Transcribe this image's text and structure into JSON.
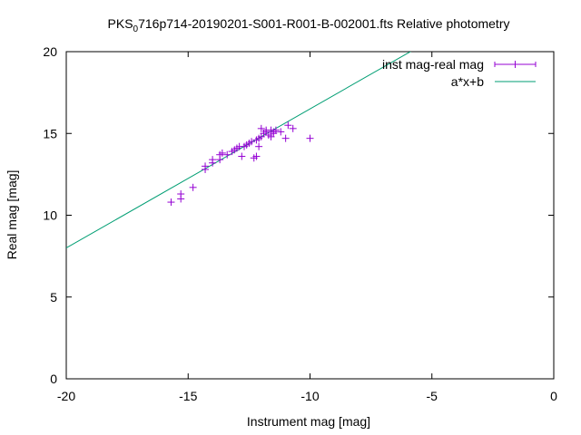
{
  "chart_data": {
    "type": "scatter",
    "title": {
      "prefix": "PKS",
      "subscript": "0",
      "suffix": "716p714-20190201-S001-R001-B-002001.fts Relative photometry"
    },
    "xlabel": "Instrument mag [mag]",
    "ylabel": "Real mag [mag]",
    "xlim": [
      -20,
      0
    ],
    "ylim": [
      0,
      20
    ],
    "xticks": [
      -20,
      -15,
      -10,
      -5,
      0
    ],
    "yticks": [
      0,
      5,
      10,
      15,
      20
    ],
    "grid": false,
    "legend_position": "top-right",
    "colors": {
      "points": "#9400d3",
      "fit": "#009e73"
    },
    "series": [
      {
        "name": "inst mag-real mag",
        "kind": "points",
        "points": [
          {
            "x": -15.7,
            "y": 10.8
          },
          {
            "x": -15.3,
            "y": 11.0
          },
          {
            "x": -15.3,
            "y": 11.3
          },
          {
            "x": -14.8,
            "y": 11.7
          },
          {
            "x": -14.3,
            "y": 12.8
          },
          {
            "x": -14.3,
            "y": 13.0
          },
          {
            "x": -14.0,
            "y": 13.2
          },
          {
            "x": -14.0,
            "y": 13.4
          },
          {
            "x": -13.7,
            "y": 13.4
          },
          {
            "x": -13.7,
            "y": 13.7
          },
          {
            "x": -13.6,
            "y": 13.8
          },
          {
            "x": -13.4,
            "y": 13.7
          },
          {
            "x": -13.2,
            "y": 13.9
          },
          {
            "x": -13.1,
            "y": 14.0
          },
          {
            "x": -13.0,
            "y": 14.1
          },
          {
            "x": -12.9,
            "y": 14.2
          },
          {
            "x": -12.8,
            "y": 13.6
          },
          {
            "x": -12.7,
            "y": 14.2
          },
          {
            "x": -12.6,
            "y": 14.3
          },
          {
            "x": -12.5,
            "y": 14.4
          },
          {
            "x": -12.4,
            "y": 14.5
          },
          {
            "x": -12.3,
            "y": 13.5
          },
          {
            "x": -12.2,
            "y": 13.6
          },
          {
            "x": -12.2,
            "y": 14.6
          },
          {
            "x": -12.1,
            "y": 14.7
          },
          {
            "x": -12.1,
            "y": 14.2
          },
          {
            "x": -12.0,
            "y": 14.8
          },
          {
            "x": -12.0,
            "y": 15.3
          },
          {
            "x": -11.9,
            "y": 15.0
          },
          {
            "x": -11.8,
            "y": 15.1
          },
          {
            "x": -11.8,
            "y": 15.2
          },
          {
            "x": -11.7,
            "y": 14.9
          },
          {
            "x": -11.6,
            "y": 15.2
          },
          {
            "x": -11.6,
            "y": 14.8
          },
          {
            "x": -11.5,
            "y": 15.0
          },
          {
            "x": -11.5,
            "y": 15.1
          },
          {
            "x": -11.4,
            "y": 15.2
          },
          {
            "x": -11.2,
            "y": 15.1
          },
          {
            "x": -11.0,
            "y": 14.7
          },
          {
            "x": -10.9,
            "y": 15.5
          },
          {
            "x": -10.7,
            "y": 15.3
          },
          {
            "x": -10.0,
            "y": 14.7
          }
        ]
      },
      {
        "name": "a*x+b",
        "kind": "line",
        "slope": 0.85,
        "intercept": 25.0
      }
    ]
  }
}
